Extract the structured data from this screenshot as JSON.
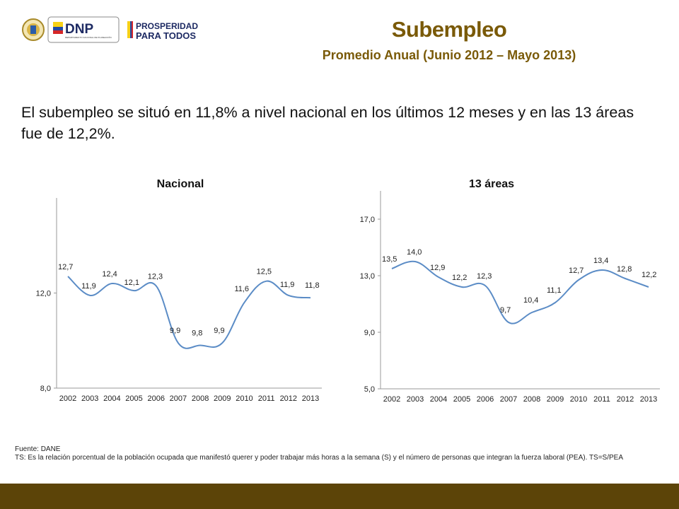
{
  "header": {
    "title": "Subempleo",
    "subtitle": "Promedio Anual (Junio 2012 – Mayo 2013)",
    "logo_dnp_text": "DNP",
    "logo_dnp_subtext": "DEPARTAMENTO NACIONAL DE PLANEACIÓN",
    "logo_prosperidad_line1": "PROSPERIDAD",
    "logo_prosperidad_line2": "PARA TODOS"
  },
  "summary_text": "El subempleo se situó en 11,8% a nivel nacional en los últimos 12 meses y en las 13 áreas fue de 12,2%.",
  "chart_data": [
    {
      "type": "line",
      "title": "Nacional",
      "categories": [
        "2002",
        "2003",
        "2004",
        "2005",
        "2006",
        "2007",
        "2008",
        "2009",
        "2010",
        "2011",
        "2012",
        "2013"
      ],
      "values": [
        12.7,
        11.9,
        12.4,
        12.1,
        12.3,
        9.9,
        9.8,
        9.9,
        11.6,
        12.5,
        11.9,
        11.8
      ],
      "data_labels": [
        "12,7",
        "11,9",
        "12,4",
        "12,1",
        "12,3",
        "9,9",
        "9,8",
        "9,9",
        "11,6",
        "12,5",
        "11,9",
        "11,8"
      ],
      "yticks": [
        "8,0",
        "12,0"
      ],
      "ytick_values": [
        8,
        12
      ],
      "ylim": [
        8,
        16
      ],
      "line_color": "#5b8cc6",
      "grid": false
    },
    {
      "type": "line",
      "title": "13 áreas",
      "categories": [
        "2002",
        "2003",
        "2004",
        "2005",
        "2006",
        "2007",
        "2008",
        "2009",
        "2010",
        "2011",
        "2012",
        "2013"
      ],
      "values": [
        13.5,
        14.0,
        12.9,
        12.2,
        12.3,
        9.7,
        10.4,
        11.1,
        12.7,
        13.4,
        12.8,
        12.2
      ],
      "data_labels": [
        "13,5",
        "14,0",
        "12,9",
        "12,2",
        "12,3",
        "9,7",
        "10,4",
        "11,1",
        "12,7",
        "13,4",
        "12,8",
        "12,2"
      ],
      "yticks": [
        "5,0",
        "9,0",
        "13,0",
        "17,0"
      ],
      "ytick_values": [
        5,
        9,
        13,
        17
      ],
      "ylim": [
        5,
        19
      ],
      "line_color": "#5b8cc6",
      "grid": false
    }
  ],
  "footnote": {
    "source": "Fuente: DANE",
    "definition": "TS:  Es la relación porcentual de la población ocupada que manifestó querer y poder trabajar más horas a la semana (S) y el número de personas que integran la fuerza laboral (PEA). TS=S/PEA"
  },
  "colors": {
    "title": "#7a5a08",
    "footer_bar": "#5c4408",
    "line": "#5b8cc6"
  }
}
